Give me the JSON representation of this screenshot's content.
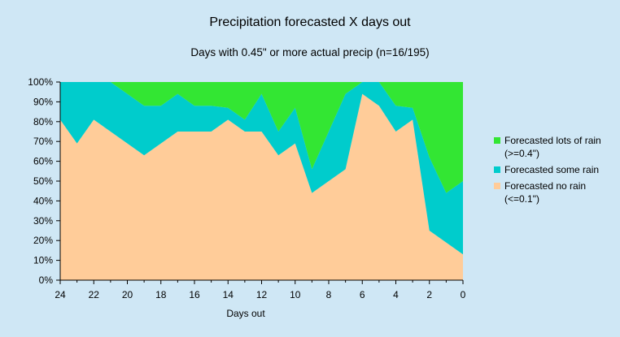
{
  "chart_data": {
    "type": "area",
    "stacked": true,
    "title": "Precipitation forecasted X days out",
    "subtitle": "Days with 0.45\" or more actual precip (n=16/195)",
    "xlabel": "Days out",
    "ylabel": "",
    "x_reversed": true,
    "xlim": [
      24,
      0
    ],
    "ylim": [
      0,
      100
    ],
    "x_ticks": [
      "24",
      "22",
      "20",
      "18",
      "16",
      "14",
      "12",
      "10",
      "8",
      "6",
      "4",
      "2",
      "0"
    ],
    "y_ticks": [
      "0%",
      "10%",
      "20%",
      "30%",
      "40%",
      "50%",
      "60%",
      "70%",
      "80%",
      "90%",
      "100%"
    ],
    "x": [
      24,
      23,
      22,
      21,
      20,
      19,
      18,
      17,
      16,
      15,
      14,
      13,
      12,
      11,
      10,
      9,
      8,
      7,
      6,
      5,
      4,
      3,
      2,
      1,
      0
    ],
    "series": [
      {
        "name": "Forecasted no rain (<=0.1\")",
        "color": "#ffcc99",
        "values": [
          81,
          69,
          81,
          75,
          69,
          63,
          69,
          75,
          75,
          75,
          81,
          75,
          75,
          63,
          69,
          44,
          50,
          56,
          94,
          88,
          75,
          81,
          25,
          19,
          13
        ]
      },
      {
        "name": "Forecasted some rain",
        "color": "#00cccc",
        "values": [
          19,
          31,
          19,
          25,
          25,
          25,
          19,
          19,
          13,
          13,
          6,
          6,
          19,
          12,
          18,
          12,
          25,
          38,
          6,
          12,
          13,
          6,
          37,
          25,
          37
        ]
      },
      {
        "name": "Forecasted lots of rain (>=0.4\")",
        "color": "#33e633",
        "values": [
          0,
          0,
          0,
          0,
          6,
          12,
          12,
          6,
          12,
          12,
          13,
          19,
          6,
          25,
          13,
          44,
          25,
          6,
          0,
          0,
          12,
          13,
          38,
          56,
          50
        ]
      }
    ],
    "legend": {
      "position": "right",
      "entries": [
        {
          "label_lines": [
            "Forecasted lots of rain",
            "(>=0.4\")"
          ],
          "color": "#33e633"
        },
        {
          "label_lines": [
            "Forecasted some rain"
          ],
          "color": "#00cccc"
        },
        {
          "label_lines": [
            "Forecasted no rain",
            "(<=0.1\")"
          ],
          "color": "#ffcc99"
        }
      ]
    },
    "grid": false
  }
}
